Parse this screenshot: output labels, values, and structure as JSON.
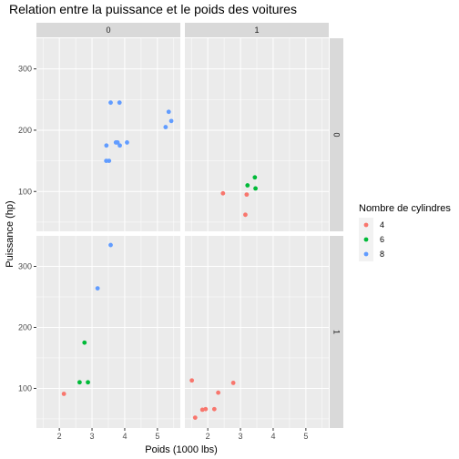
{
  "chart_data": {
    "type": "scatter",
    "title": "Relation entre la puissance et le poids des voitures",
    "xlabel": "Poids (1000 lbs)",
    "ylabel": "Puissance (hp)",
    "xlim": [
      1.3,
      5.7
    ],
    "ylim": [
      35,
      350
    ],
    "x_ticks": [
      2,
      3,
      4,
      5
    ],
    "y_ticks": [
      100,
      200,
      300
    ],
    "grid": true,
    "legend": {
      "title": "Nombre de cylindres",
      "placement": "right",
      "entries": [
        {
          "label": "4",
          "color": "#F8766D"
        },
        {
          "label": "6",
          "color": "#00BA38"
        },
        {
          "label": "8",
          "color": "#619CFF"
        }
      ]
    },
    "facet_cols": [
      "0",
      "1"
    ],
    "facet_rows": [
      "0",
      "1"
    ],
    "panels": [
      {
        "col": "0",
        "row": "0",
        "points": [
          {
            "x": 3.57,
            "y": 245,
            "cyl": "8"
          },
          {
            "x": 3.84,
            "y": 245,
            "cyl": "8"
          },
          {
            "x": 5.345,
            "y": 230,
            "cyl": "8"
          },
          {
            "x": 5.424,
            "y": 215,
            "cyl": "8"
          },
          {
            "x": 5.25,
            "y": 205,
            "cyl": "8"
          },
          {
            "x": 4.07,
            "y": 180,
            "cyl": "8"
          },
          {
            "x": 3.73,
            "y": 180,
            "cyl": "8"
          },
          {
            "x": 3.78,
            "y": 180,
            "cyl": "8"
          },
          {
            "x": 3.85,
            "y": 175,
            "cyl": "8"
          },
          {
            "x": 3.44,
            "y": 175,
            "cyl": "8"
          },
          {
            "x": 3.52,
            "y": 150,
            "cyl": "8"
          },
          {
            "x": 3.435,
            "y": 150,
            "cyl": "8"
          }
        ]
      },
      {
        "col": "1",
        "row": "0",
        "points": [
          {
            "x": 3.44,
            "y": 123,
            "cyl": "6"
          },
          {
            "x": 3.215,
            "y": 110,
            "cyl": "6"
          },
          {
            "x": 3.46,
            "y": 105,
            "cyl": "6"
          },
          {
            "x": 2.465,
            "y": 97,
            "cyl": "4"
          },
          {
            "x": 3.19,
            "y": 95,
            "cyl": "4"
          },
          {
            "x": 3.15,
            "y": 62,
            "cyl": "4"
          }
        ]
      },
      {
        "col": "0",
        "row": "1",
        "points": [
          {
            "x": 3.57,
            "y": 335,
            "cyl": "8"
          },
          {
            "x": 3.17,
            "y": 264,
            "cyl": "8"
          },
          {
            "x": 2.77,
            "y": 175,
            "cyl": "6"
          },
          {
            "x": 2.62,
            "y": 110,
            "cyl": "6"
          },
          {
            "x": 2.875,
            "y": 110,
            "cyl": "6"
          },
          {
            "x": 2.14,
            "y": 91,
            "cyl": "4"
          }
        ]
      },
      {
        "col": "1",
        "row": "1",
        "points": [
          {
            "x": 1.513,
            "y": 113,
            "cyl": "4"
          },
          {
            "x": 2.78,
            "y": 109,
            "cyl": "4"
          },
          {
            "x": 2.32,
            "y": 93,
            "cyl": "4"
          },
          {
            "x": 2.2,
            "y": 66,
            "cyl": "4"
          },
          {
            "x": 1.935,
            "y": 66,
            "cyl": "4"
          },
          {
            "x": 1.835,
            "y": 65,
            "cyl": "4"
          },
          {
            "x": 1.615,
            "y": 52,
            "cyl": "4"
          }
        ]
      }
    ]
  }
}
